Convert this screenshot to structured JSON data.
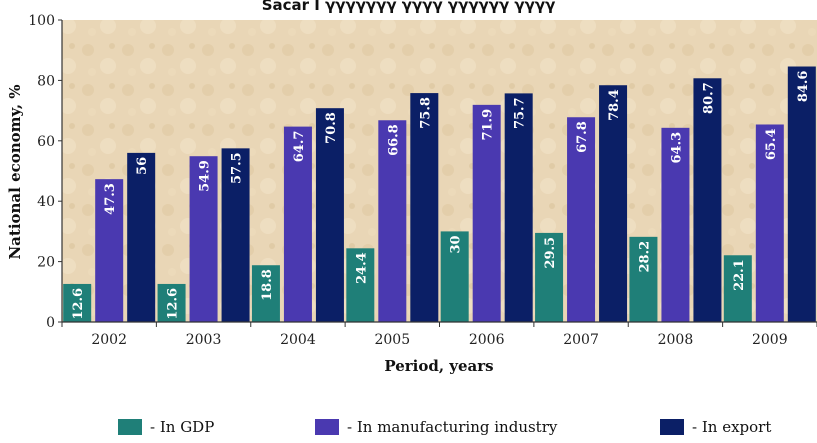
{
  "title": "Sacar I γγγγγγγ γγγγ γγγγγγ γγγγ",
  "colors": {
    "gdp": "#1f7f78",
    "manufacturing": "#4a39b0",
    "export": "#0b1f66",
    "plot_bg": "#e7d3b2",
    "axis": "#333333"
  },
  "chart_data": {
    "type": "bar",
    "categories": [
      "2002",
      "2003",
      "2004",
      "2005",
      "2006",
      "2007",
      "2008",
      "2009"
    ],
    "series": [
      {
        "name": "- In GDP",
        "values": [
          12.6,
          12.6,
          18.8,
          24.4,
          30,
          29.5,
          28.2,
          22.1
        ]
      },
      {
        "name": "- In manufacturing industry",
        "values": [
          47.3,
          54.9,
          64.7,
          66.8,
          71.9,
          67.8,
          64.3,
          65.4
        ]
      },
      {
        "name": "- In export",
        "values": [
          56,
          57.5,
          70.8,
          75.8,
          75.7,
          78.4,
          80.7,
          84.6
        ]
      }
    ],
    "value_labels": [
      [
        "12.6",
        "12.6",
        "18.8",
        "24.4",
        "30",
        "29.5",
        "28.2",
        "22.1"
      ],
      [
        "47.3",
        "54.9",
        "64.7",
        "66.8",
        "71.9",
        "67.8",
        "64.3",
        "65.4"
      ],
      [
        "56",
        "57.5",
        "70.8",
        "75.8",
        "75.7",
        "78.4",
        "80.7",
        "84.6"
      ]
    ],
    "xlabel": "Period, years",
    "ylabel": "National economy, %",
    "ylim": [
      0,
      100
    ],
    "yticks": [
      "0",
      "20",
      "40",
      "60",
      "80",
      "100"
    ],
    "grid": false,
    "legend_position": "bottom"
  }
}
